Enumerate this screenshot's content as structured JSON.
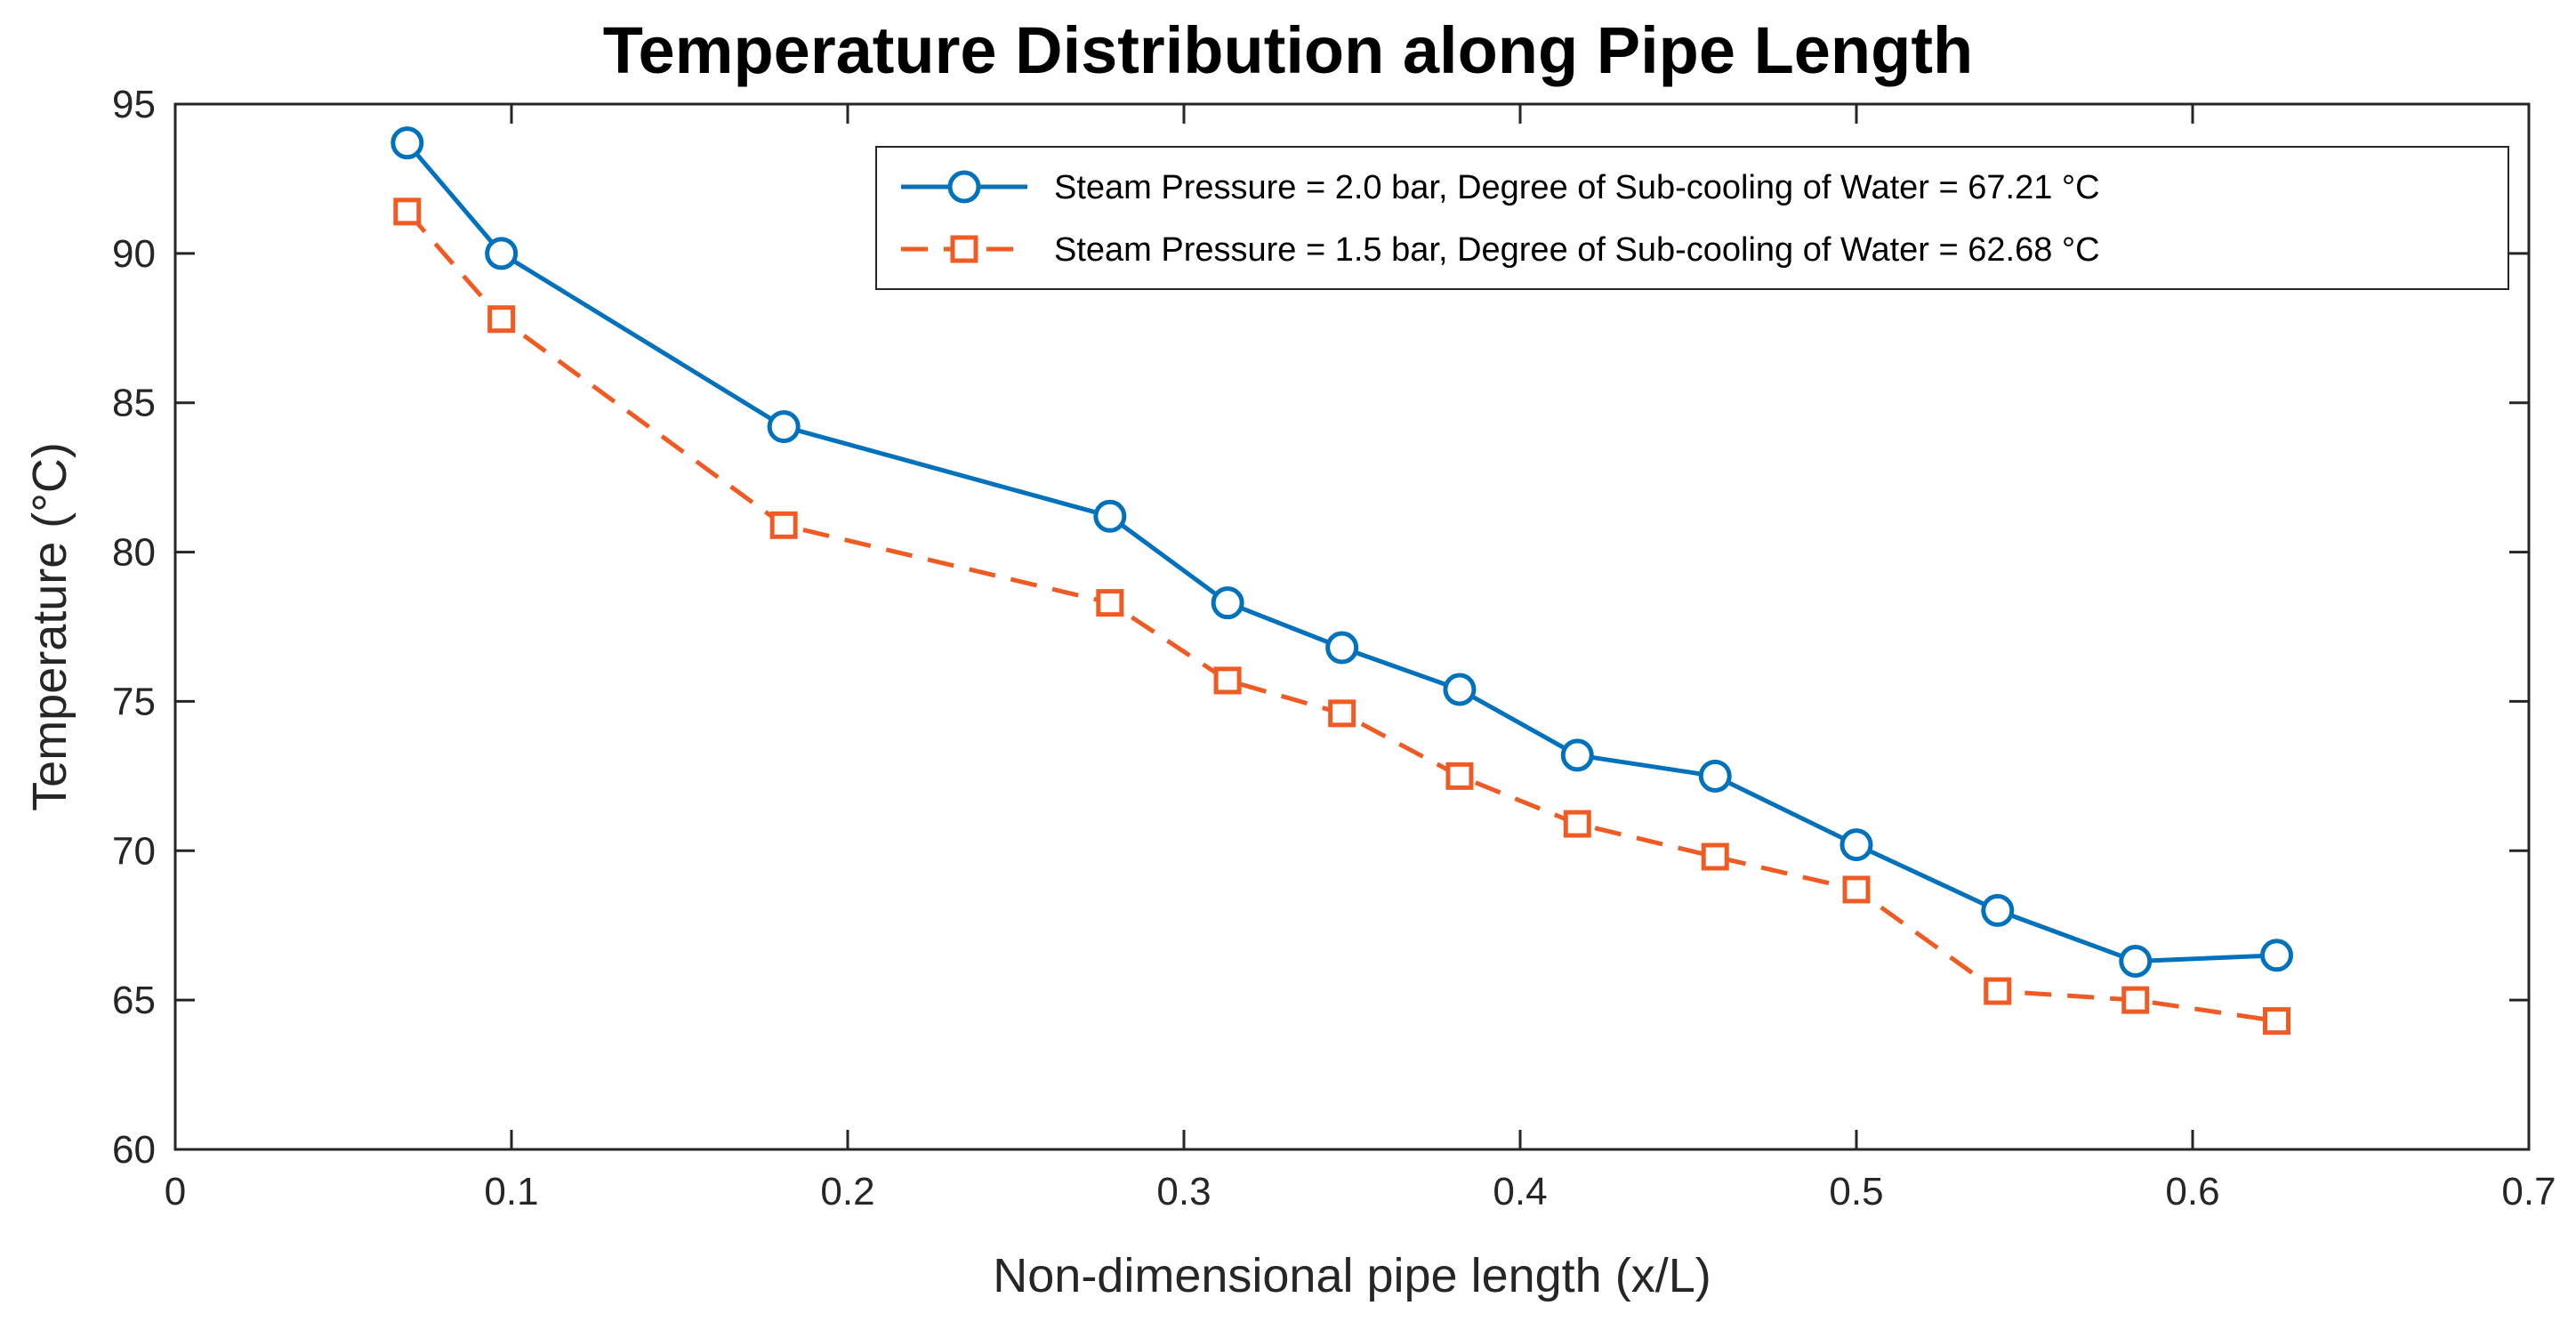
{
  "chart_data": {
    "type": "line",
    "title": "Temperature Distribution along Pipe Length",
    "xlabel": "Non-dimensional pipe length (x/L)",
    "ylabel": "Temperature (°C)",
    "xlim": [
      0,
      0.7
    ],
    "ylim": [
      60,
      95
    ],
    "xticks": [
      0,
      0.1,
      0.2,
      0.3,
      0.4,
      0.5,
      0.6,
      0.7
    ],
    "xtick_labels": [
      "0",
      "0.1",
      "0.2",
      "0.3",
      "0.4",
      "0.5",
      "0.6",
      "0.7"
    ],
    "yticks": [
      60,
      65,
      70,
      75,
      80,
      85,
      90,
      95
    ],
    "ytick_labels": [
      "60",
      "65",
      "70",
      "75",
      "80",
      "85",
      "90",
      "95"
    ],
    "grid": false,
    "legend_position": "top-right",
    "x": [
      0.069,
      0.097,
      0.181,
      0.278,
      0.313,
      0.347,
      0.382,
      0.417,
      0.458,
      0.5,
      0.542,
      0.583,
      0.625
    ],
    "series": [
      {
        "name": "Steam Pressure = 2.0 bar, Degree of Sub-cooling of Water = 67.21 °C",
        "color": "#0072BD",
        "line_style": "solid",
        "marker": "circle",
        "values": [
          93.7,
          90.0,
          84.2,
          81.2,
          78.3,
          76.8,
          75.4,
          73.2,
          72.5,
          70.2,
          68.0,
          66.3,
          66.5
        ]
      },
      {
        "name": "Steam Pressure = 1.5 bar, Degree of Sub-cooling of Water = 62.68 °C",
        "color": "#F05A23",
        "line_style": "dashed",
        "marker": "square",
        "values": [
          91.4,
          87.8,
          80.9,
          78.3,
          75.7,
          74.6,
          72.5,
          70.9,
          69.8,
          68.7,
          65.3,
          65.0,
          64.3
        ]
      }
    ]
  }
}
